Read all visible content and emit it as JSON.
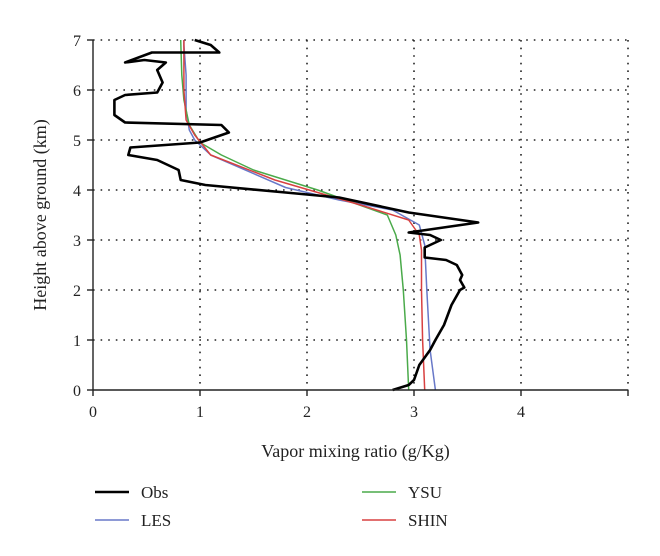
{
  "chart_data": {
    "type": "line",
    "xlabel": "Vapor mixing ratio (g/Kg)",
    "ylabel": "Height above ground (km)",
    "xlim": [
      0,
      5
    ],
    "ylim": [
      0,
      7
    ],
    "x_ticks": [
      "0",
      "1",
      "2",
      "3",
      "4"
    ],
    "y_ticks": [
      "0",
      "1",
      "2",
      "3",
      "4",
      "5",
      "6",
      "7"
    ],
    "grid": true,
    "legend": "bottom",
    "series": [
      {
        "name": "Obs",
        "color": "#000000",
        "points": [
          [
            2.8,
            0.0
          ],
          [
            2.95,
            0.1
          ],
          [
            3.0,
            0.2
          ],
          [
            3.05,
            0.5
          ],
          [
            3.15,
            0.8
          ],
          [
            3.2,
            1.0
          ],
          [
            3.28,
            1.3
          ],
          [
            3.35,
            1.7
          ],
          [
            3.43,
            2.0
          ],
          [
            3.47,
            2.05
          ],
          [
            3.43,
            2.2
          ],
          [
            3.45,
            2.3
          ],
          [
            3.4,
            2.5
          ],
          [
            3.3,
            2.6
          ],
          [
            3.1,
            2.65
          ],
          [
            3.1,
            2.85
          ],
          [
            3.25,
            3.0
          ],
          [
            3.15,
            3.1
          ],
          [
            2.95,
            3.15
          ],
          [
            3.6,
            3.35
          ],
          [
            2.95,
            3.55
          ],
          [
            2.3,
            3.85
          ],
          [
            1.8,
            3.95
          ],
          [
            1.05,
            4.1
          ],
          [
            0.82,
            4.2
          ],
          [
            0.8,
            4.4
          ],
          [
            0.6,
            4.6
          ],
          [
            0.33,
            4.7
          ],
          [
            0.35,
            4.85
          ],
          [
            1.0,
            4.95
          ],
          [
            1.27,
            5.15
          ],
          [
            1.2,
            5.3
          ],
          [
            0.3,
            5.35
          ],
          [
            0.2,
            5.5
          ],
          [
            0.2,
            5.8
          ],
          [
            0.3,
            5.9
          ],
          [
            0.6,
            5.95
          ],
          [
            0.65,
            6.15
          ],
          [
            0.6,
            6.4
          ],
          [
            0.68,
            6.55
          ],
          [
            0.48,
            6.6
          ],
          [
            0.3,
            6.55
          ],
          [
            0.55,
            6.75
          ],
          [
            1.18,
            6.75
          ],
          [
            1.1,
            6.9
          ],
          [
            0.95,
            7.0
          ]
        ]
      },
      {
        "name": "LES",
        "color": "#6878c8",
        "points": [
          [
            3.2,
            0.0
          ],
          [
            3.15,
            0.8
          ],
          [
            3.12,
            2.0
          ],
          [
            3.1,
            2.9
          ],
          [
            3.05,
            3.3
          ],
          [
            2.8,
            3.6
          ],
          [
            2.3,
            3.8
          ],
          [
            1.8,
            4.05
          ],
          [
            1.1,
            4.7
          ],
          [
            0.95,
            5.0
          ],
          [
            0.9,
            5.2
          ],
          [
            0.87,
            5.6
          ],
          [
            0.87,
            6.3
          ],
          [
            0.85,
            6.9
          ],
          [
            0.85,
            7.0
          ]
        ]
      },
      {
        "name": "YSU",
        "color": "#4aaa4a",
        "points": [
          [
            2.95,
            0.0
          ],
          [
            2.93,
            1.0
          ],
          [
            2.9,
            2.0
          ],
          [
            2.87,
            2.7
          ],
          [
            2.83,
            3.1
          ],
          [
            2.75,
            3.5
          ],
          [
            2.1,
            4.0
          ],
          [
            1.5,
            4.4
          ],
          [
            1.2,
            4.7
          ],
          [
            1.0,
            4.95
          ],
          [
            0.9,
            5.3
          ],
          [
            0.85,
            5.8
          ],
          [
            0.83,
            6.3
          ],
          [
            0.82,
            7.0
          ]
        ]
      },
      {
        "name": "SHIN",
        "color": "#d84040",
        "points": [
          [
            3.1,
            0.0
          ],
          [
            3.08,
            1.0
          ],
          [
            3.07,
            2.0
          ],
          [
            3.07,
            2.8
          ],
          [
            3.05,
            3.1
          ],
          [
            2.95,
            3.4
          ],
          [
            2.5,
            3.7
          ],
          [
            1.7,
            4.2
          ],
          [
            1.1,
            4.7
          ],
          [
            0.95,
            5.1
          ],
          [
            0.87,
            5.4
          ],
          [
            0.85,
            6.0
          ],
          [
            0.85,
            6.6
          ],
          [
            0.85,
            7.0
          ]
        ]
      }
    ]
  }
}
